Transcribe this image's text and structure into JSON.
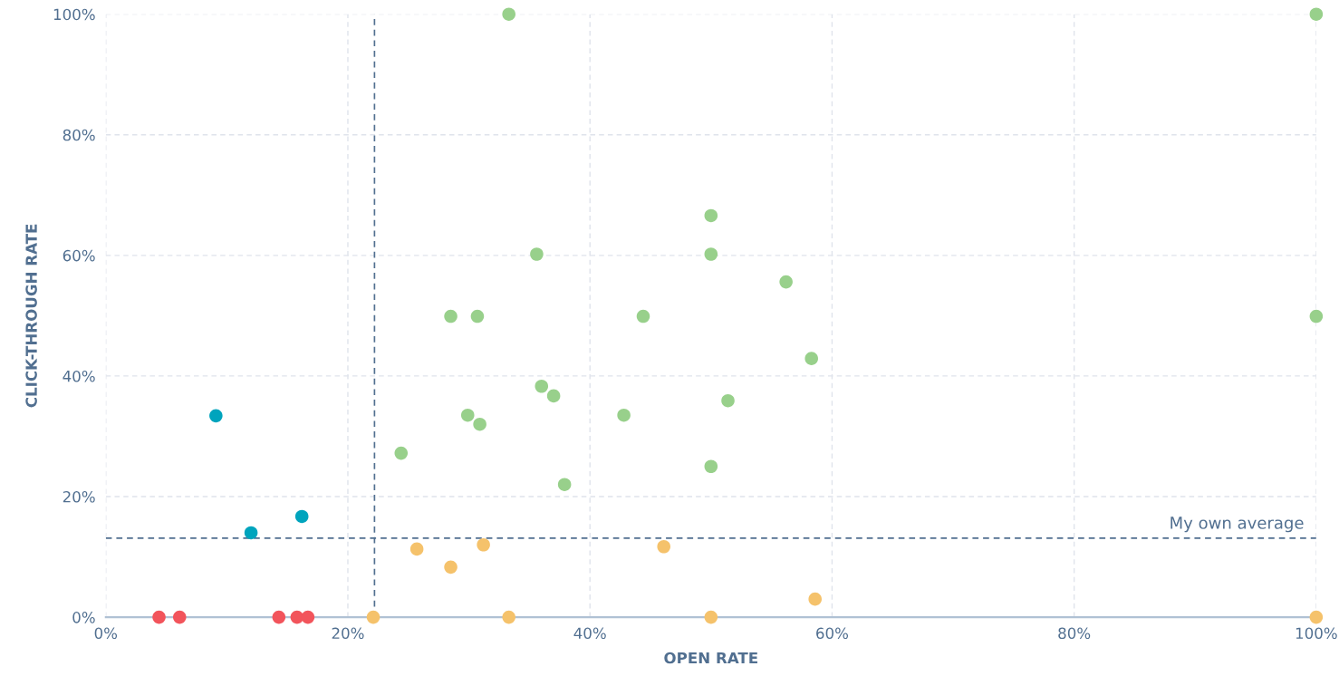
{
  "chart_data": {
    "type": "scatter",
    "xlabel": "OPEN RATE",
    "ylabel": "CLICK-THROUGH RATE",
    "xlim": [
      0,
      100
    ],
    "ylim": [
      0,
      100
    ],
    "xticks": [
      {
        "value": 0,
        "label": "0%"
      },
      {
        "value": 20,
        "label": "20%"
      },
      {
        "value": 40,
        "label": "40%"
      },
      {
        "value": 60,
        "label": "60%"
      },
      {
        "value": 80,
        "label": "80%"
      },
      {
        "value": 100,
        "label": "100%"
      }
    ],
    "yticks": [
      {
        "value": 0,
        "label": "0%"
      },
      {
        "value": 20,
        "label": "20%"
      },
      {
        "value": 40,
        "label": "40%"
      },
      {
        "value": 60,
        "label": "60%"
      },
      {
        "value": 80,
        "label": "80%"
      },
      {
        "value": 100,
        "label": "100%"
      }
    ],
    "grid": true,
    "marker": "circle",
    "series": [
      {
        "color": "#f2545b",
        "x": [
          4.4,
          6.1,
          14.3,
          15.8,
          16.7
        ],
        "values": [
          0,
          0,
          0,
          0,
          0
        ]
      },
      {
        "color": "#00a4bd",
        "x": [
          9.1,
          12.0,
          16.2
        ],
        "values": [
          33.4,
          14.0,
          16.7
        ]
      },
      {
        "color": "#f5c26b",
        "x": [
          22.1,
          25.7,
          28.5,
          31.2,
          33.3,
          46.1,
          50,
          58.6,
          100
        ],
        "values": [
          0,
          11.3,
          8.3,
          12.0,
          0,
          11.7,
          0,
          3.0,
          0
        ]
      },
      {
        "color": "#98d08b",
        "x": [
          33.3,
          100,
          50,
          35.6,
          50,
          56.2,
          28.5,
          30.7,
          44.4,
          100,
          58.3,
          36.0,
          37.0,
          51.4,
          29.9,
          30.9,
          42.8,
          24.4,
          37.9,
          50
        ],
        "values": [
          100,
          100,
          66.6,
          60.2,
          60.2,
          55.6,
          49.9,
          49.9,
          49.9,
          49.9,
          42.9,
          38.3,
          36.7,
          35.9,
          33.5,
          32.0,
          33.5,
          27.2,
          22.0,
          25.0
        ]
      }
    ],
    "ref_lines": [
      {
        "axis": "x",
        "value": 22.2,
        "label": null,
        "color": "#516f90",
        "line_style": "dashed"
      },
      {
        "axis": "y",
        "value": 13.1,
        "label": "My own average",
        "color": "#516f90",
        "line_style": "dashed"
      }
    ]
  }
}
